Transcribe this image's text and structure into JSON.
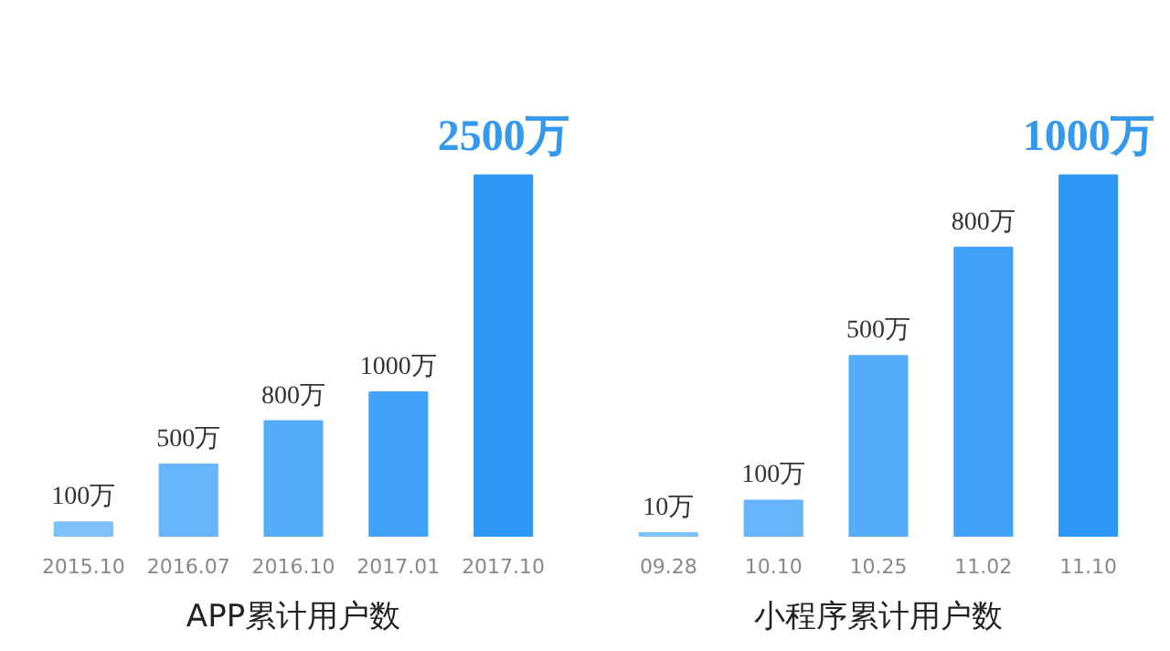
{
  "chart_data": [
    {
      "type": "bar",
      "title": "APP累计用户数",
      "categories": [
        "2015.10",
        "2016.07",
        "2016.10",
        "2017.01",
        "2017.10"
      ],
      "values": [
        100,
        500,
        800,
        1000,
        2500
      ],
      "colors": [
        "#7dc0fb",
        "#66b5fa",
        "#55acf9",
        "#40a2f8",
        "#2f98f7"
      ],
      "value_labels": [
        "100万",
        "500万",
        "800万",
        "1000万",
        "2500万"
      ]
    },
    {
      "type": "bar",
      "title": "小程序累计用户数",
      "categories": [
        "09.28",
        "10.10",
        "10.25",
        "11.02",
        "11.10"
      ],
      "values": [
        10,
        100,
        500,
        800,
        1000
      ],
      "colors": [
        "#7dc0fb",
        "#66b5fa",
        "#55acf9",
        "#40a2f8",
        "#2f98f7"
      ],
      "value_labels": [
        "10万",
        "100万",
        "500万",
        "800万",
        "1000万"
      ]
    }
  ]
}
